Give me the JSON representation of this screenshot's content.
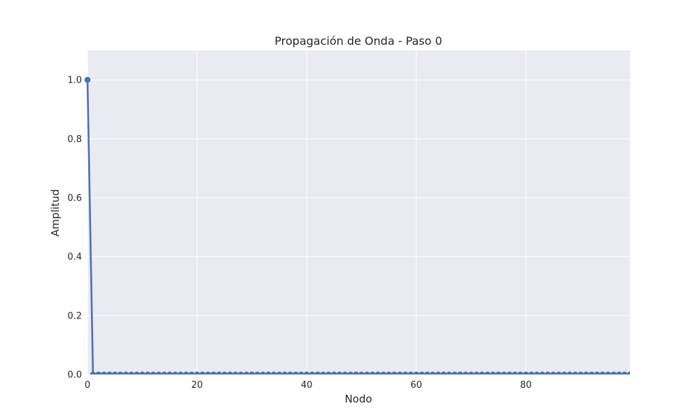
{
  "chart_data": {
    "type": "line",
    "title": "Propagación de Onda - Paso 0",
    "xlabel": "Nodo",
    "ylabel": "Amplitud",
    "xlim": [
      0,
      99
    ],
    "ylim": [
      0,
      1.1
    ],
    "xticks": [
      0,
      20,
      40,
      60,
      80
    ],
    "yticks": [
      0.0,
      0.2,
      0.4,
      0.6,
      0.8,
      1.0
    ],
    "xtick_labels": [
      "0",
      "20",
      "40",
      "60",
      "80"
    ],
    "ytick_labels": [
      "0.0",
      "0.2",
      "0.4",
      "0.6",
      "0.8",
      "1.0"
    ],
    "grid": true,
    "colors": {
      "series": "#4c72b0",
      "plot_background": "#eaeaf2",
      "grid": "#ffffff"
    },
    "series": [
      {
        "x": [
          0,
          1,
          2,
          3,
          4,
          5,
          6,
          7,
          8,
          9,
          10,
          11,
          12,
          13,
          14,
          15,
          16,
          17,
          18,
          19,
          20,
          21,
          22,
          23,
          24,
          25,
          26,
          27,
          28,
          29,
          30,
          31,
          32,
          33,
          34,
          35,
          36,
          37,
          38,
          39,
          40,
          41,
          42,
          43,
          44,
          45,
          46,
          47,
          48,
          49,
          50,
          51,
          52,
          53,
          54,
          55,
          56,
          57,
          58,
          59,
          60,
          61,
          62,
          63,
          64,
          65,
          66,
          67,
          68,
          69,
          70,
          71,
          72,
          73,
          74,
          75,
          76,
          77,
          78,
          79,
          80,
          81,
          82,
          83,
          84,
          85,
          86,
          87,
          88,
          89,
          90,
          91,
          92,
          93,
          94,
          95,
          96,
          97,
          98,
          99
        ],
        "values": [
          1,
          0,
          0,
          0,
          0,
          0,
          0,
          0,
          0,
          0,
          0,
          0,
          0,
          0,
          0,
          0,
          0,
          0,
          0,
          0,
          0,
          0,
          0,
          0,
          0,
          0,
          0,
          0,
          0,
          0,
          0,
          0,
          0,
          0,
          0,
          0,
          0,
          0,
          0,
          0,
          0,
          0,
          0,
          0,
          0,
          0,
          0,
          0,
          0,
          0,
          0,
          0,
          0,
          0,
          0,
          0,
          0,
          0,
          0,
          0,
          0,
          0,
          0,
          0,
          0,
          0,
          0,
          0,
          0,
          0,
          0,
          0,
          0,
          0,
          0,
          0,
          0,
          0,
          0,
          0,
          0,
          0,
          0,
          0,
          0,
          0,
          0,
          0,
          0,
          0,
          0,
          0,
          0,
          0,
          0,
          0,
          0,
          0,
          0,
          0
        ]
      }
    ]
  }
}
